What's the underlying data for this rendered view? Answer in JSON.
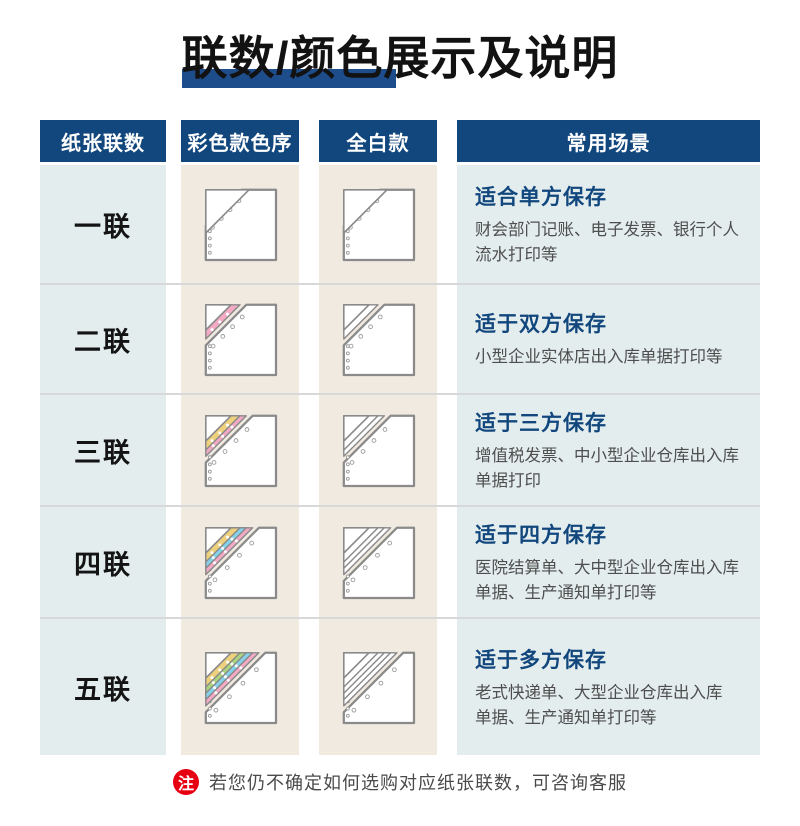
{
  "title": {
    "text": "联数/颜色展示及说明"
  },
  "table": {
    "headers": [
      {
        "label": "纸张联数"
      },
      {
        "label": "彩色款色序"
      },
      {
        "label": "全白款"
      },
      {
        "label": "常用场景"
      }
    ],
    "rows": [
      {
        "ply_label": "一联",
        "plies": 1,
        "color_sequence": [
          "white"
        ],
        "scenario_title": "适合单方保存",
        "scenario_desc": "财会部门记账、电子发票、银行个人\n流水打印等"
      },
      {
        "ply_label": "二联",
        "plies": 2,
        "color_sequence": [
          "white",
          "pink"
        ],
        "scenario_title": "适于双方保存",
        "scenario_desc": "小型企业实体店出入库单据打印等"
      },
      {
        "ply_label": "三联",
        "plies": 3,
        "color_sequence": [
          "white",
          "pink",
          "yellow"
        ],
        "scenario_title": "适于三方保存",
        "scenario_desc": "增值税发票、中小型企业仓库出入库\n单据打印"
      },
      {
        "ply_label": "四联",
        "plies": 4,
        "color_sequence": [
          "white",
          "pink",
          "blue",
          "yellow"
        ],
        "scenario_title": "适于四方保存",
        "scenario_desc": "医院结算单、大中型企业仓库出入库\n单据、生产通知单打印等"
      },
      {
        "ply_label": "五联",
        "plies": 5,
        "color_sequence": [
          "white",
          "pink",
          "blue",
          "green",
          "yellow"
        ],
        "scenario_title": "适于多方保存",
        "scenario_desc": "老式快递单、大型企业仓库出入库\n单据、生产通知单打印等"
      }
    ]
  },
  "note": {
    "badge": "注",
    "text": "若您仍不确定如何选购对应纸张联数，可咨询客服"
  },
  "colors": {
    "header_bg": "#12477d",
    "accent_bar": "#1e4d8c",
    "scenario_title": "#12477d",
    "cell_blue": "#e3edee",
    "cell_beige": "#f0eae1",
    "divider": "#d8d8d8",
    "note_red": "#e60012",
    "paper_outline": "#8a8a8a",
    "ply_white": "#ffffff",
    "ply_pink": "#f4a9c4",
    "ply_blue": "#85d2ec",
    "ply_green": "#abd47e",
    "ply_yellow": "#eed17c"
  }
}
